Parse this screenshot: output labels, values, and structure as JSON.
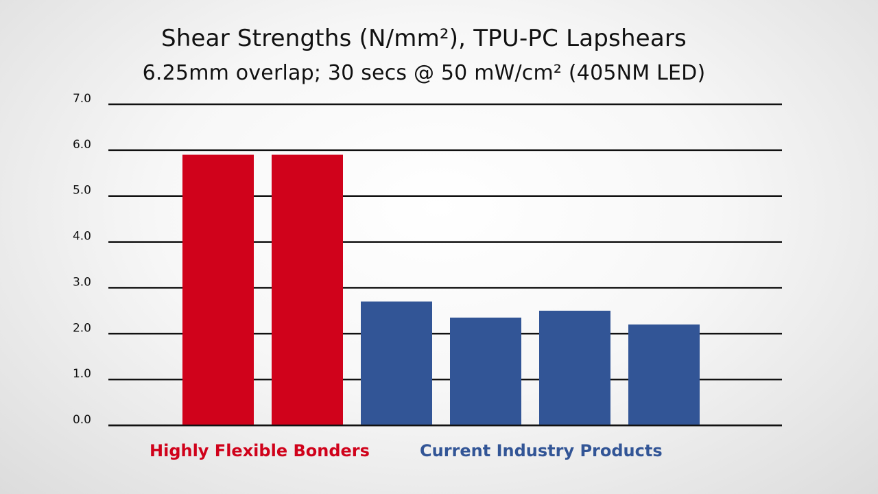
{
  "chart_data": {
    "type": "bar",
    "title": "Shear Strengths (N/mm²), TPU-PC Lapshears",
    "subtitle": "6.25mm overlap; 30 secs @ 50 mW/cm² (405NM LED)",
    "xlabel": "",
    "ylabel": "",
    "ylim": [
      0,
      7
    ],
    "yticks": [
      "0.0",
      "1.0",
      "2.0",
      "3.0",
      "4.0",
      "5.0",
      "6.0",
      "7.0"
    ],
    "grid": true,
    "values": [
      5.9,
      5.9,
      2.7,
      2.35,
      2.5,
      2.2
    ],
    "colors": [
      "#d0021b",
      "#d0021b",
      "#325596",
      "#325596",
      "#325596",
      "#325596"
    ],
    "groups": [
      {
        "label": "Highly Flexible Bonders",
        "color": "#d0021b"
      },
      {
        "label": "Current Industry Products",
        "color": "#325596"
      }
    ]
  }
}
